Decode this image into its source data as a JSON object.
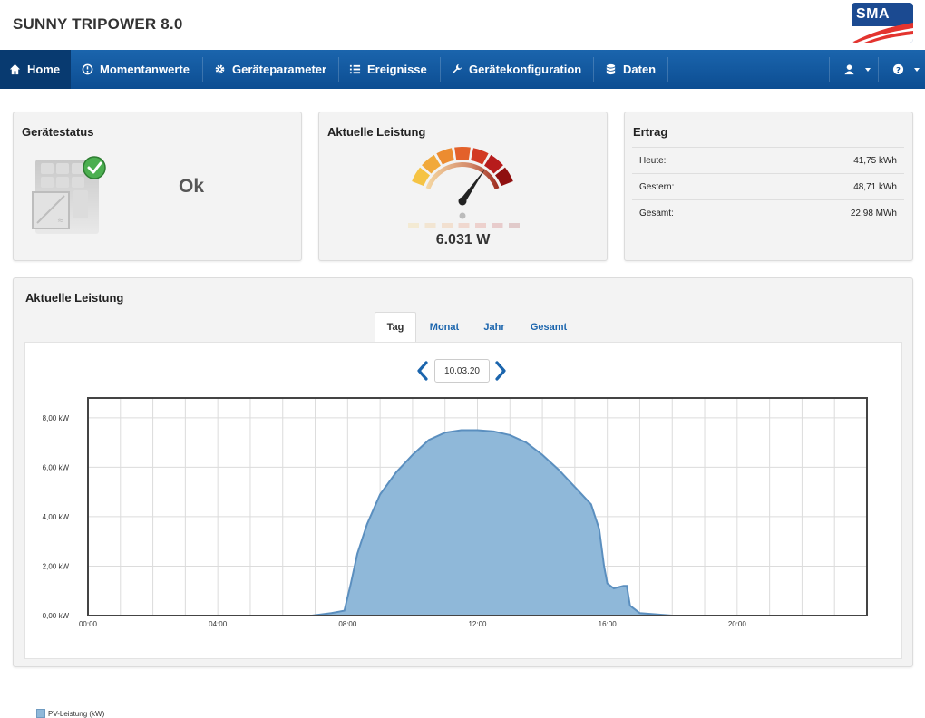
{
  "header": {
    "title": "SUNNY TRIPOWER 8.0",
    "logo_text": "SMA"
  },
  "nav": {
    "items": [
      {
        "label": "Home",
        "icon": "home-icon",
        "active": true
      },
      {
        "label": "Momentanwerte",
        "icon": "gauge-icon"
      },
      {
        "label": "Geräteparameter",
        "icon": "gear-icon"
      },
      {
        "label": "Ereignisse",
        "icon": "list-icon"
      },
      {
        "label": "Gerätekonfiguration",
        "icon": "wrench-icon"
      },
      {
        "label": "Daten",
        "icon": "database-icon"
      }
    ],
    "user_icon": "user-icon",
    "help_icon": "help-icon"
  },
  "device_status": {
    "title": "Gerätestatus",
    "value": "Ok",
    "icon": "inverter-ok-icon"
  },
  "current_power": {
    "title": "Aktuelle Leistung",
    "value": "6.031 W",
    "gauge_fraction": 0.75
  },
  "yield": {
    "title": "Ertrag",
    "rows": [
      {
        "label": "Heute:",
        "value": "41,75 kWh"
      },
      {
        "label": "Gestern:",
        "value": "48,71 kWh"
      },
      {
        "label": "Gesamt:",
        "value": "22,98 MWh"
      }
    ]
  },
  "chart_panel": {
    "title": "Aktuelle Leistung",
    "tabs": [
      "Tag",
      "Monat",
      "Jahr",
      "Gesamt"
    ],
    "active_tab": "Tag",
    "date": "10.03.20"
  },
  "colors": {
    "nav": "#1b65ad",
    "area_fill": "#8fb8d9",
    "area_line": "#5b8fbf",
    "accent": "#1b65ad"
  },
  "chart_data": {
    "type": "area",
    "ylim": [
      0,
      8.8
    ],
    "xlim": [
      0,
      24
    ],
    "y_ticks": [
      {
        "value": 0,
        "label": "0,00 kW"
      },
      {
        "value": 2,
        "label": "2,00 kW"
      },
      {
        "value": 4,
        "label": "4,00 kW"
      },
      {
        "value": 6,
        "label": "6,00 kW"
      },
      {
        "value": 8,
        "label": "8,00 kW"
      }
    ],
    "x_ticks": [
      {
        "value": 0,
        "label": "00:00"
      },
      {
        "value": 4,
        "label": "04:00"
      },
      {
        "value": 8,
        "label": "08:00"
      },
      {
        "value": 12,
        "label": "12:00"
      },
      {
        "value": 16,
        "label": "16:00"
      },
      {
        "value": 20,
        "label": "20:00"
      }
    ],
    "grid": true,
    "legend_position": "bottom-left",
    "series": [
      {
        "name": "PV-Leistung (kW)",
        "x": [
          0,
          6.9,
          7.5,
          7.9,
          8.1,
          8.3,
          8.6,
          9.0,
          9.5,
          10.0,
          10.5,
          11.0,
          11.5,
          12.0,
          12.5,
          13.0,
          13.5,
          14.0,
          14.5,
          15.0,
          15.5,
          15.75,
          15.9,
          16.0,
          16.2,
          16.5,
          16.6,
          16.7,
          17.0,
          17.5,
          18.0,
          24
        ],
        "y": [
          0,
          0,
          0.1,
          0.2,
          1.3,
          2.5,
          3.7,
          4.9,
          5.8,
          6.5,
          7.1,
          7.4,
          7.5,
          7.5,
          7.45,
          7.3,
          7.0,
          6.5,
          5.9,
          5.2,
          4.5,
          3.5,
          2.0,
          1.3,
          1.1,
          1.2,
          1.2,
          0.4,
          0.1,
          0.05,
          0,
          0
        ]
      }
    ]
  }
}
